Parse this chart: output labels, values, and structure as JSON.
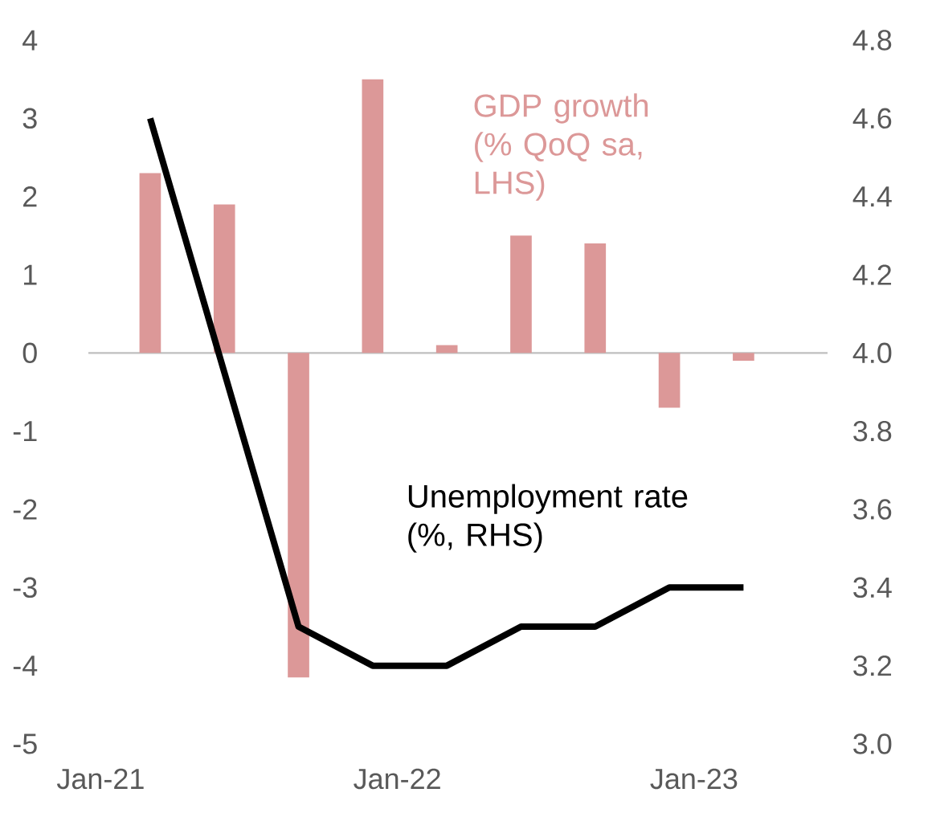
{
  "chart_data": {
    "type": "bar",
    "x": [
      "2021-03",
      "2021-06",
      "2021-09",
      "2021-12",
      "2022-03",
      "2022-06",
      "2022-09",
      "2022-12",
      "2023-03"
    ],
    "series": [
      {
        "name": "GDP growth (% QoQ sa, LHS)",
        "color": "#dc9898",
        "values": [
          2.3,
          1.9,
          -4.15,
          3.5,
          0.1,
          1.5,
          1.4,
          -0.7,
          -0.1
        ]
      },
      {
        "name": "Unemployment rate (%, RHS)",
        "type": "line",
        "axis": "y2",
        "color": "#000000",
        "values": [
          4.6,
          3.95,
          3.3,
          3.2,
          3.2,
          3.3,
          3.3,
          3.4,
          3.4
        ]
      }
    ],
    "xlim": [
      "2020-12-16",
      "2023-06-13"
    ],
    "xticks": [
      {
        "value": "2021-01",
        "label": "Jan-21"
      },
      {
        "value": "2022-01",
        "label": "Jan-22"
      },
      {
        "value": "2023-01",
        "label": "Jan-23"
      }
    ],
    "ylim": [
      -5,
      4
    ],
    "yticks": [
      -5,
      -4,
      -3,
      -2,
      -1,
      0,
      1,
      2,
      3,
      4
    ],
    "y2lim": [
      3.0,
      4.8
    ],
    "y2ticks": [
      {
        "value": 3.0,
        "label": "3.0"
      },
      {
        "value": 3.2,
        "label": "3.2"
      },
      {
        "value": 3.4,
        "label": "3.4"
      },
      {
        "value": 3.6,
        "label": "3.6"
      },
      {
        "value": 3.8,
        "label": "3.8"
      },
      {
        "value": 4.0,
        "label": "4.0"
      },
      {
        "value": 4.2,
        "label": "4.2"
      },
      {
        "value": 4.4,
        "label": "4.4"
      },
      {
        "value": 4.6,
        "label": "4.6"
      },
      {
        "value": 4.8,
        "label": "4.8"
      }
    ]
  }
}
